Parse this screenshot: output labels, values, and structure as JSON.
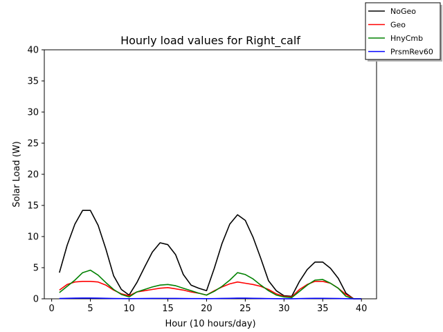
{
  "chart_data": {
    "type": "line",
    "title": "Hourly load values for Right_calf",
    "xlabel": "Hour (10 hours/day)",
    "ylabel": "Solar Load (W)",
    "xlim": [
      -0.95,
      41.95
    ],
    "ylim": [
      0,
      40
    ],
    "xticks": [
      0,
      5,
      10,
      15,
      20,
      25,
      30,
      35,
      40
    ],
    "yticks": [
      0,
      5,
      10,
      15,
      20,
      25,
      30,
      35,
      40
    ],
    "grid": false,
    "legend_position": "top-right",
    "x": [
      1,
      2,
      3,
      4,
      5,
      6,
      7,
      8,
      9,
      10,
      11,
      12,
      13,
      14,
      15,
      16,
      17,
      18,
      19,
      20,
      21,
      22,
      23,
      24,
      25,
      26,
      27,
      28,
      29,
      30,
      31,
      32,
      33,
      34,
      35,
      36,
      37,
      38,
      39,
      40
    ],
    "series": [
      {
        "name": "NoGeo",
        "color": "#000000",
        "values": [
          4.2,
          8.6,
          12.0,
          14.2,
          14.2,
          11.8,
          8.0,
          3.7,
          1.5,
          0.6,
          2.6,
          5.1,
          7.5,
          9.0,
          8.7,
          7.1,
          3.9,
          2.2,
          1.7,
          1.3,
          4.9,
          8.9,
          12.0,
          13.5,
          12.6,
          9.9,
          6.5,
          2.9,
          1.3,
          0.5,
          0.4,
          2.8,
          4.7,
          5.9,
          5.9,
          4.9,
          3.3,
          0.9,
          0.0,
          0.0
        ]
      },
      {
        "name": "Geo",
        "color": "#ff0000",
        "values": [
          1.4,
          2.3,
          2.7,
          2.8,
          2.8,
          2.7,
          2.2,
          1.4,
          0.8,
          0.5,
          1.1,
          1.3,
          1.5,
          1.7,
          1.8,
          1.6,
          1.4,
          1.1,
          0.9,
          0.6,
          1.3,
          1.9,
          2.4,
          2.7,
          2.5,
          2.3,
          2.0,
          1.5,
          0.8,
          0.4,
          0.3,
          1.5,
          2.3,
          2.8,
          2.8,
          2.5,
          1.7,
          0.7,
          0.0,
          0.0
        ]
      },
      {
        "name": "HnyCmb",
        "color": "#008000",
        "values": [
          1.0,
          2.0,
          3.0,
          4.2,
          4.6,
          3.8,
          2.6,
          1.5,
          0.7,
          0.3,
          1.1,
          1.5,
          1.9,
          2.2,
          2.3,
          2.1,
          1.7,
          1.3,
          0.9,
          0.6,
          1.2,
          2.0,
          3.0,
          4.2,
          3.9,
          3.2,
          2.2,
          1.3,
          0.6,
          0.3,
          0.2,
          1.2,
          2.2,
          3.0,
          3.1,
          2.5,
          1.7,
          0.4,
          0.0,
          0.0
        ]
      },
      {
        "name": "PrsmRev60",
        "color": "#0000ff",
        "values": [
          0.05,
          0.08,
          0.1,
          0.12,
          0.12,
          0.1,
          0.08,
          0.05,
          0.03,
          0.02,
          0.03,
          0.05,
          0.06,
          0.07,
          0.07,
          0.06,
          0.05,
          0.04,
          0.03,
          0.02,
          0.04,
          0.06,
          0.08,
          0.1,
          0.1,
          0.08,
          0.06,
          0.04,
          0.02,
          0.01,
          0.01,
          0.04,
          0.06,
          0.08,
          0.08,
          0.07,
          0.05,
          0.02,
          0.0,
          0.0
        ]
      }
    ]
  }
}
